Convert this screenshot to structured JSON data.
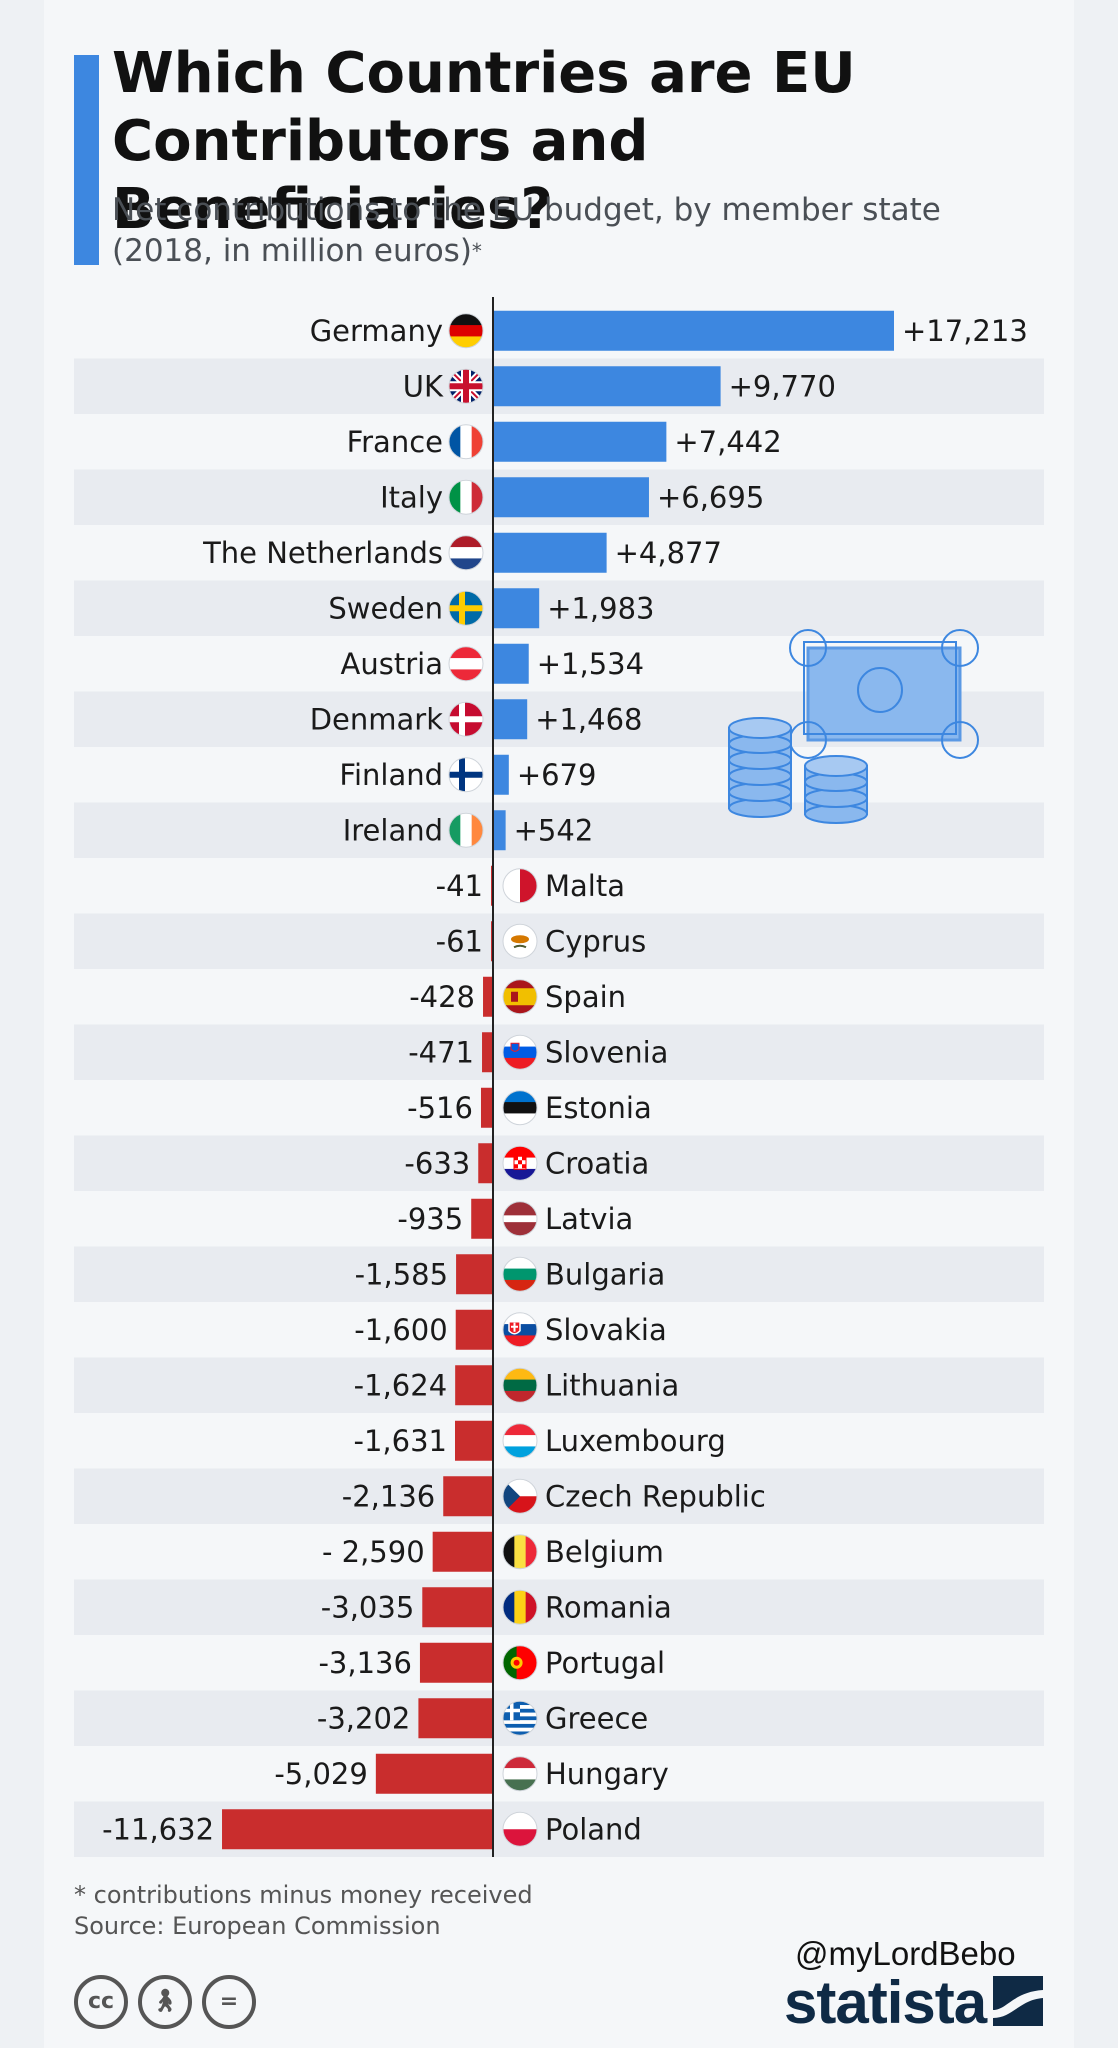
{
  "header": {
    "title": "Which Countries are EU Contributors and Beneficiaries?",
    "subtitle": "Net contributions to the EU budget, by member state (2018, in million euros)",
    "subtitle_mark": "*"
  },
  "footer": {
    "note": "* contributions minus money received",
    "source": "Source: European Commission",
    "handle": "@myLordBebo",
    "brand": "statista",
    "license_icons": [
      "cc-icon",
      "attribution-icon",
      "no-derivatives-icon"
    ]
  },
  "colors": {
    "positive": "#3d87e0",
    "negative": "#c92d2d",
    "row_band": "#e8ebf0",
    "axis": "#222222"
  },
  "chart_data": {
    "type": "bar",
    "orientation": "horizontal",
    "series": [
      {
        "values": [
          17213,
          9770,
          7442,
          6695,
          4877,
          1983,
          1534,
          1468,
          679,
          542,
          -41,
          -61,
          -428,
          -471,
          -516,
          -633,
          -935,
          -1585,
          -1600,
          -1624,
          -1631,
          -2136,
          -2590,
          -3035,
          -3136,
          -3202,
          -5029,
          -11632
        ]
      }
    ],
    "categories": [
      "Germany",
      "UK",
      "France",
      "Italy",
      "The Netherlands",
      "Sweden",
      "Austria",
      "Denmark",
      "Finland",
      "Ireland",
      "Malta",
      "Cyprus",
      "Spain",
      "Slovenia",
      "Estonia",
      "Croatia",
      "Latvia",
      "Bulgaria",
      "Slovakia",
      "Lithuania",
      "Luxembourg",
      "Czech Republic",
      "Belgium",
      "Romania",
      "Portugal",
      "Greece",
      "Hungary",
      "Poland"
    ],
    "value_labels": [
      "+17,213",
      "+9,770",
      "+7,442",
      "+6,695",
      "+4,877",
      "+1,983",
      "+1,534",
      "+1,468",
      "+679",
      "+542",
      "-41",
      "-61",
      "-428",
      "-471",
      "-516",
      "-633",
      "-935",
      "-1,585",
      "-1,600",
      "-1,624",
      "-1,631",
      "-2,136",
      "- 2,590",
      "-3,035",
      "-3,136",
      "-3,202",
      "-5,029",
      "-11,632"
    ],
    "flags": [
      "germany-flag-icon",
      "uk-flag-icon",
      "france-flag-icon",
      "italy-flag-icon",
      "netherlands-flag-icon",
      "sweden-flag-icon",
      "austria-flag-icon",
      "denmark-flag-icon",
      "finland-flag-icon",
      "ireland-flag-icon",
      "malta-flag-icon",
      "cyprus-flag-icon",
      "spain-flag-icon",
      "slovenia-flag-icon",
      "estonia-flag-icon",
      "croatia-flag-icon",
      "latvia-flag-icon",
      "bulgaria-flag-icon",
      "slovakia-flag-icon",
      "lithuania-flag-icon",
      "luxembourg-flag-icon",
      "czech-republic-flag-icon",
      "belgium-flag-icon",
      "romania-flag-icon",
      "portugal-flag-icon",
      "greece-flag-icon",
      "hungary-flag-icon",
      "poland-flag-icon"
    ],
    "xlim": [
      -11632,
      17213
    ],
    "grid": false,
    "legend": "none",
    "illustration": [
      "banknote-icon",
      "coin-stack-icon"
    ]
  }
}
